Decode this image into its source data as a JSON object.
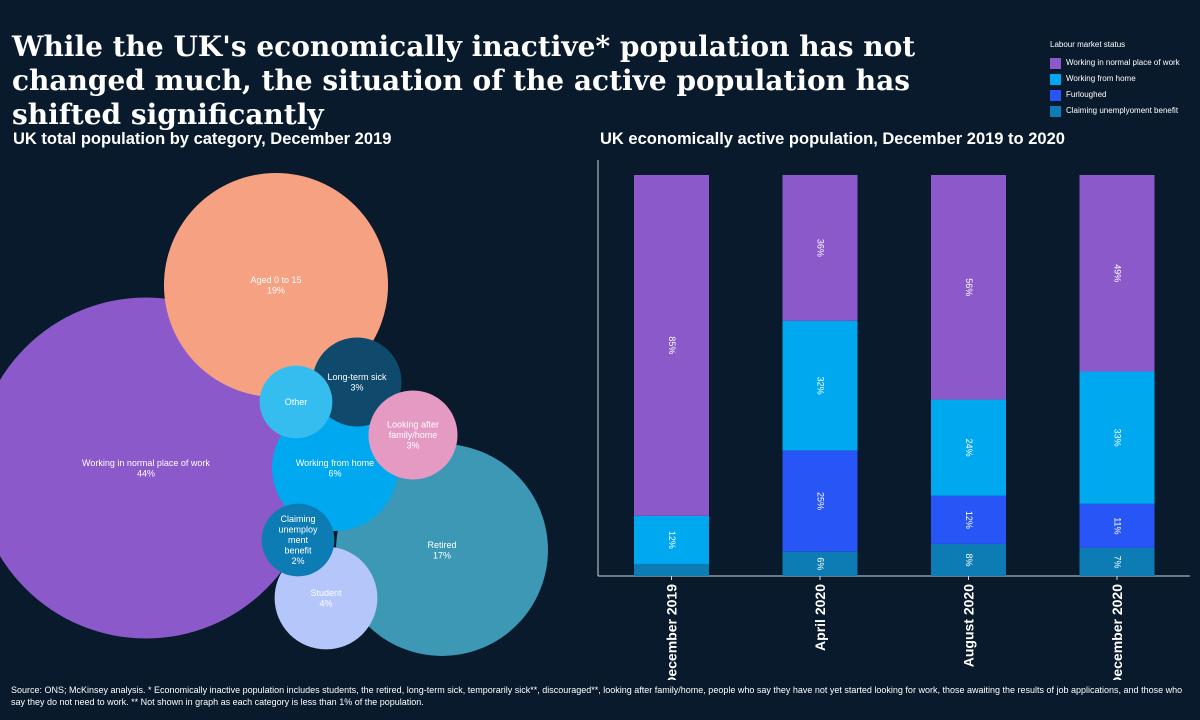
{
  "title": "While the UK's economically inactive* population has not changed much, the situation of the active population has shifted significantly",
  "legend": {
    "title": "Labour market status",
    "items": [
      {
        "label": "Working in normal place of work",
        "color": "#8c59cb"
      },
      {
        "label": "Working from home",
        "color": "#00a8f0"
      },
      {
        "label": "Furloughed",
        "color": "#2855f5"
      },
      {
        "label": "Claiming unemplyoment benefit",
        "color": "#0e7cb4"
      }
    ]
  },
  "left_subtitle": "UK total population by category, December 2019",
  "right_subtitle": "UK economically active population, December 2019 to 2020",
  "source": "Source: ONS; McKinsey analysis. * Economically inactive population includes students, the retired, long-term sick, temporarily sick**, discouraged**, looking after family/home, people who say they have not yet started looking for work, those awaiting the results of job applications, and those who say they do not need to work. ** Not shown in graph as each category is less than 1% of the population.",
  "chart_data": [
    {
      "type": "bubble",
      "title": "UK total population by category, December 2019",
      "items": [
        {
          "label": [
            "Working in normal place of work"
          ],
          "value": "44%",
          "share": 44,
          "color": "#8c59cb"
        },
        {
          "label": [
            "Aged 0 to 15"
          ],
          "value": "19%",
          "share": 19,
          "color": "#f7a183"
        },
        {
          "label": [
            "Retired"
          ],
          "value": "17%",
          "share": 17,
          "color": "#3c98b5"
        },
        {
          "label": [
            "Working from home"
          ],
          "value": "6%",
          "share": 6,
          "color": "#00a8f0"
        },
        {
          "label": [
            "Student"
          ],
          "value": "4%",
          "share": 4,
          "color": "#b5c6fb"
        },
        {
          "label": [
            "Long-term sick"
          ],
          "value": "3%",
          "share": 3,
          "color": "#0f4a6c"
        },
        {
          "label": [
            "Looking after",
            "family/home"
          ],
          "value": "3%",
          "share": 3,
          "color": "#e59ac4"
        },
        {
          "label": [
            "Claiming",
            "unemploy",
            "ment",
            "benefit"
          ],
          "value": "2%",
          "share": 2,
          "color": "#0e7cb4"
        },
        {
          "label": [
            "Other"
          ],
          "value": "",
          "share": 2,
          "color": "#36bdf0"
        }
      ]
    },
    {
      "type": "bar",
      "stacked": true,
      "percent": true,
      "title": "UK economically active population, December 2019 to 2020",
      "categories": [
        "December 2019",
        "April 2020",
        "August 2020",
        "December 2020"
      ],
      "series": [
        {
          "name": "Claiming unemplyoment benefit",
          "color": "#0e7cb4",
          "values": [
            3,
            6,
            8,
            7
          ],
          "labels": [
            "",
            "6%",
            "8%",
            "7%"
          ]
        },
        {
          "name": "Furloughed",
          "color": "#2855f5",
          "values": [
            0,
            25,
            12,
            11
          ],
          "labels": [
            "",
            "25%",
            "12%",
            "11%"
          ]
        },
        {
          "name": "Working from home",
          "color": "#00a8f0",
          "values": [
            12,
            32,
            24,
            33
          ],
          "labels": [
            "12%",
            "32%",
            "24%",
            "33%"
          ]
        },
        {
          "name": "Working in normal place of work",
          "color": "#8c59cb",
          "values": [
            85,
            36,
            56,
            49
          ],
          "labels": [
            "85%",
            "36%",
            "56%",
            "49%"
          ]
        }
      ]
    }
  ]
}
